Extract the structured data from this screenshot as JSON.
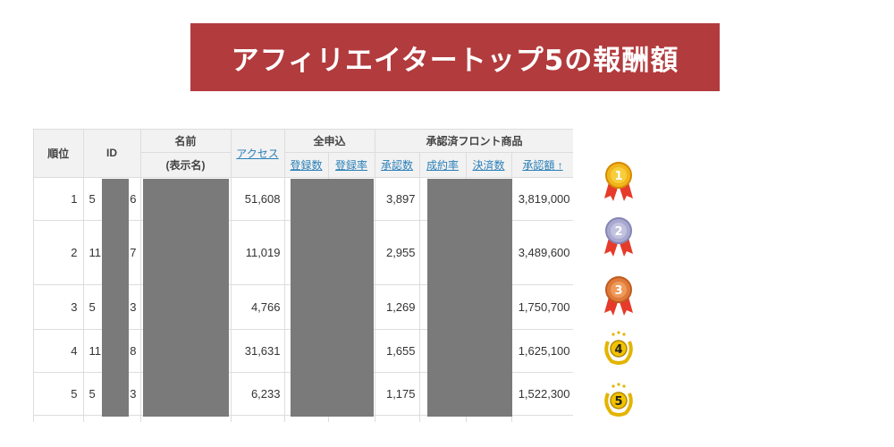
{
  "banner": {
    "title": "アフィリエイタートップ5の報酬額"
  },
  "table": {
    "headers": {
      "rank": "順位",
      "id": "ID",
      "name_line1": "名前",
      "name_line2": "(表示名)",
      "access": "アクセス",
      "group_all": "全申込",
      "registrations": "登録数",
      "registration_rate": "登録率",
      "group_front": "承認済フロント商品",
      "approvals": "承認数",
      "conversion_rate": "成約率",
      "settlements": "決済数",
      "approved_amount": "承認額 ↑"
    },
    "rows": [
      {
        "rank": "1",
        "id_prefix": "5",
        "id_suffix": "6",
        "access": "51,608",
        "approvals": "3,897",
        "amount": "3,819,000"
      },
      {
        "rank": "2",
        "id_prefix": "11",
        "id_suffix": "7",
        "access": "11,019",
        "approvals": "2,955",
        "amount": "3,489,600"
      },
      {
        "rank": "3",
        "id_prefix": "5",
        "id_suffix": "3",
        "access": "4,766",
        "approvals": "1,269",
        "amount": "1,750,700"
      },
      {
        "rank": "4",
        "id_prefix": "11",
        "id_suffix": "8",
        "access": "31,631",
        "approvals": "1,655",
        "amount": "1,625,100"
      },
      {
        "rank": "5",
        "id_prefix": "5",
        "id_suffix": "3",
        "access": "6,233",
        "approvals": "1,175",
        "amount": "1,522,300"
      }
    ]
  },
  "medals": [
    {
      "icon": "gold-medal-icon",
      "label": "1",
      "color": "#e8a317"
    },
    {
      "icon": "silver-medal-icon",
      "label": "2",
      "color": "#a9a9d0"
    },
    {
      "icon": "bronze-medal-icon",
      "label": "3",
      "color": "#e07a3a"
    },
    {
      "icon": "laurel-badge-icon",
      "label": "4",
      "color": "#f2c200"
    },
    {
      "icon": "laurel-badge-icon",
      "label": "5",
      "color": "#f2c200"
    }
  ],
  "colors": {
    "banner": "#b23b3d",
    "mask": "#7a7a7a",
    "link": "#2a7fb8"
  }
}
